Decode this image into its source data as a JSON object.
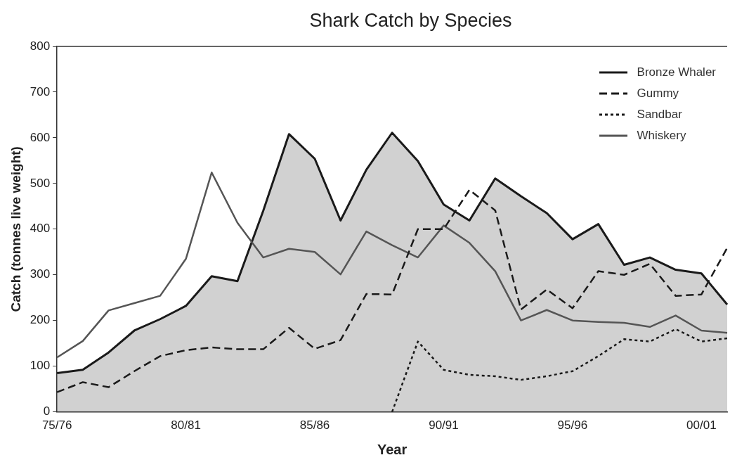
{
  "chart_data": {
    "type": "line",
    "title": "Shark Catch by Species",
    "xlabel": "Year",
    "ylabel": "Catch (tonnes live weight)",
    "categories": [
      "75/76",
      null,
      null,
      null,
      null,
      "80/81",
      null,
      null,
      null,
      null,
      "85/86",
      null,
      null,
      null,
      null,
      "90/91",
      null,
      null,
      null,
      null,
      "95/96",
      null,
      null,
      null,
      null,
      "00/01",
      null
    ],
    "ylim": [
      0,
      800
    ],
    "yticks": [
      0,
      100,
      200,
      300,
      400,
      500,
      600,
      700,
      800
    ],
    "grid": false,
    "legend": "top right",
    "marker": "none",
    "series": [
      {
        "name": "Bronze Whaler",
        "type": "area",
        "color": "#1a1a1a",
        "line_style": "solid",
        "values": [
          85,
          92,
          130,
          178,
          203,
          232,
          297,
          286,
          440,
          608,
          554,
          419,
          530,
          611,
          549,
          454,
          419,
          511,
          472,
          435,
          378,
          411,
          322,
          338,
          311,
          303,
          235
        ]
      },
      {
        "name": "Gummy",
        "color": "#1a1a1a",
        "line_style": "dashed",
        "values": [
          43,
          65,
          54,
          89,
          122,
          135,
          141,
          137,
          137,
          184,
          138,
          157,
          258,
          257,
          400,
          400,
          486,
          441,
          224,
          268,
          227,
          308,
          300,
          324,
          254,
          257,
          359
        ]
      },
      {
        "name": "Sandbar",
        "color": "#1a1a1a",
        "line_style": "dotted",
        "values": [
          null,
          null,
          null,
          null,
          null,
          null,
          null,
          null,
          null,
          null,
          null,
          null,
          null,
          0,
          154,
          92,
          81,
          78,
          70,
          78,
          89,
          122,
          159,
          154,
          181,
          154,
          161
        ]
      },
      {
        "name": "Whiskery",
        "color": "#555555",
        "line_style": "solid",
        "values": [
          119,
          155,
          222,
          238,
          254,
          335,
          524,
          414,
          338,
          357,
          350,
          301,
          395,
          365,
          338,
          408,
          370,
          308,
          200,
          223,
          200,
          197,
          195,
          186,
          211,
          178,
          173
        ]
      }
    ]
  }
}
